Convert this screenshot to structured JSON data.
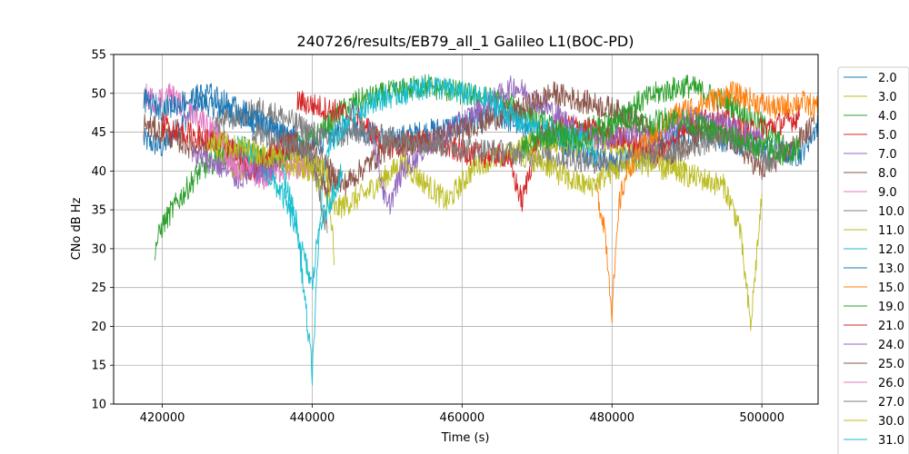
{
  "chart_data": {
    "type": "line",
    "title": "240726/results/EB79_all_1 Galileo L1(BOC-PD)",
    "xlabel": "Time (s)",
    "ylabel": "CNo dB Hz",
    "xlim": [
      413500,
      507500
    ],
    "ylim": [
      10,
      55
    ],
    "xticks": [
      "420000",
      "440000",
      "460000",
      "480000",
      "500000"
    ],
    "yticks": [
      "10",
      "15",
      "20",
      "25",
      "30",
      "35",
      "40",
      "45",
      "50",
      "55"
    ],
    "grid": true,
    "legend_position": "outside-right",
    "series": [
      {
        "name": "2.0",
        "color": "#1f77b4",
        "x": [
          417500,
          420000,
          425000,
          430000,
          435000,
          440000,
          445000,
          450000,
          455000,
          460000,
          465000,
          470000,
          475000,
          480000,
          485000,
          490000,
          495000,
          500000,
          505000,
          507500
        ],
        "y": [
          44,
          43,
          49,
          47,
          45,
          43,
          46,
          44,
          45,
          46,
          47,
          45,
          43,
          41,
          43,
          45,
          44,
          43,
          42,
          46
        ]
      },
      {
        "name": "3.0",
        "color": "#bcbd22",
        "x": [
          427000,
          430000,
          433000,
          436000,
          440000,
          443000,
          447000,
          452000,
          458000,
          462000,
          466000,
          470000,
          474000,
          478000,
          482000,
          486000,
          490000
        ],
        "y": [
          43,
          40,
          42,
          41,
          40,
          35,
          37,
          41,
          36,
          41,
          42,
          44,
          43,
          44,
          43,
          42,
          40
        ]
      },
      {
        "name": "4.0",
        "color": "#2ca02c",
        "x": [
          419000,
          420000,
          422000,
          425000,
          428000,
          431000,
          434000,
          437000,
          440000,
          443000,
          446000,
          450000,
          455000,
          460000,
          465000,
          470000,
          474000,
          478000,
          482000,
          486000,
          490000,
          495000,
          500000,
          503000
        ],
        "y": [
          30,
          33,
          36,
          40,
          42,
          43,
          41,
          43,
          44,
          47,
          49,
          50,
          51,
          50,
          49,
          47,
          44,
          46,
          48,
          50,
          51,
          49,
          46,
          43
        ]
      },
      {
        "name": "5.0",
        "color": "#d62728",
        "x": [
          438000,
          442000,
          446000,
          450000,
          454000,
          458000,
          462000,
          466000,
          468000,
          470000,
          474000,
          478000,
          482000,
          486000,
          490000,
          494000,
          498000,
          502000,
          505000
        ],
        "y": [
          49,
          48,
          47,
          43,
          44,
          43,
          42,
          42,
          36,
          44,
          46,
          45,
          44,
          42,
          46,
          47,
          45,
          46,
          47
        ]
      },
      {
        "name": "7.0",
        "color": "#9467bd",
        "x": [
          448000,
          450000,
          452000,
          455000,
          458000,
          461000,
          464000,
          467000,
          470000,
          473000,
          476000,
          479000,
          482000,
          486000,
          490000,
          495000,
          500000
        ],
        "y": [
          45,
          35,
          40,
          43,
          45,
          47,
          49,
          51,
          49,
          47,
          45,
          44,
          45,
          44,
          47,
          46,
          44
        ]
      },
      {
        "name": "8.0",
        "color": "#8c564b",
        "x": [
          417500,
          420000,
          424000,
          428000,
          432000,
          436000,
          440000,
          444000,
          450000,
          456000,
          462000,
          468000,
          472000,
          476000,
          480000,
          484000,
          488000,
          492000,
          496000,
          500000,
          504000,
          507000
        ],
        "y": [
          46,
          45,
          43,
          44,
          40,
          42,
          43,
          38,
          43,
          44,
          46,
          48,
          50,
          49,
          48,
          46,
          42,
          45,
          44,
          40,
          43,
          46
        ]
      },
      {
        "name": "9.0",
        "color": "#e377c2",
        "x": [
          417500,
          419000,
          421000,
          423000,
          425000,
          427000,
          429000,
          431000,
          433000,
          436000,
          440000
        ],
        "y": [
          50,
          49,
          50,
          48,
          47,
          45,
          43,
          41,
          39,
          40,
          41
        ]
      },
      {
        "name": "10.0",
        "color": "#7f7f7f",
        "x": [
          427000,
          430000,
          433000,
          436000,
          438000,
          440000,
          442000,
          446000,
          452000,
          460000,
          470000,
          480000,
          486000,
          490000,
          494000,
          498000,
          501000,
          503000
        ],
        "y": [
          46,
          47,
          48,
          47,
          46,
          45,
          44,
          45,
          44,
          43,
          42,
          41,
          42,
          43,
          44,
          44,
          41,
          43
        ]
      },
      {
        "name": "11.0",
        "color": "#bcbd22",
        "x": [
          468000,
          471000,
          474000,
          477000,
          480000,
          484000,
          488000,
          492000,
          495000,
          497000,
          498500,
          500000
        ],
        "y": [
          42,
          41,
          39,
          38,
          40,
          41,
          40,
          39,
          38,
          33,
          20,
          37
        ]
      },
      {
        "name": "12.0",
        "color": "#17becf",
        "x": [
          430000,
          433000,
          436000,
          438000,
          440000,
          442000,
          445000,
          448000,
          452000,
          456000,
          460000,
          464000,
          468000,
          472000,
          476000,
          478000
        ],
        "y": [
          43,
          41,
          37,
          32,
          25,
          43,
          47,
          49,
          50,
          51,
          50,
          49,
          46,
          45,
          44,
          42
        ]
      },
      {
        "name": "13.0",
        "color": "#1f77b4",
        "x": [
          417500,
          420000,
          423000,
          426000,
          428000,
          430000,
          432000,
          434000,
          436000,
          438000
        ],
        "y": [
          49,
          48,
          49,
          50,
          49,
          48,
          47,
          46,
          45,
          44
        ]
      },
      {
        "name": "15.0",
        "color": "#ff7f0e",
        "x": [
          478000,
          479000,
          480000,
          481000,
          482000,
          484000,
          486000,
          488000,
          490000,
          493000,
          496000,
          499000,
          502000,
          505000,
          507500
        ],
        "y": [
          37,
          33,
          22,
          36,
          40,
          43,
          45,
          47,
          48,
          49,
          50,
          49,
          48,
          49,
          48
        ]
      },
      {
        "name": "19.0",
        "color": "#2ca02c",
        "x": [
          468000,
          470000,
          473000,
          476000,
          479000,
          482000,
          485000,
          488000,
          491000,
          494000,
          497000,
          500000,
          503000,
          505000
        ],
        "y": [
          43,
          44,
          45,
          44,
          45,
          47,
          46,
          47,
          46,
          45,
          44,
          43,
          42,
          43
        ]
      },
      {
        "name": "21.0",
        "color": "#d62728",
        "x": [
          420000,
          423000,
          426000,
          429000,
          432000,
          435000,
          438000
        ],
        "y": [
          46,
          45,
          44,
          43,
          40,
          43,
          44
        ]
      },
      {
        "name": "24.0",
        "color": "#9467bd",
        "x": [
          424000,
          427000,
          430000,
          433000,
          436000
        ],
        "y": [
          42,
          41,
          39,
          40,
          41
        ]
      },
      {
        "name": "25.0",
        "color": "#8c564b",
        "x": [
          436000,
          438000,
          440000,
          442000,
          444000
        ],
        "y": [
          44,
          43,
          41,
          38,
          40
        ]
      },
      {
        "name": "26.0",
        "color": "#e377c2",
        "x": [
          428000,
          430000,
          432000
        ],
        "y": [
          42,
          40,
          41
        ]
      },
      {
        "name": "27.0",
        "color": "#7f7f7f",
        "x": [
          432000,
          436000,
          440000,
          442000
        ],
        "y": [
          45,
          44,
          42,
          32
        ]
      },
      {
        "name": "30.0",
        "color": "#bcbd22",
        "x": [
          426000,
          430000,
          434000,
          438000,
          442000,
          443000
        ],
        "y": [
          44,
          43,
          42,
          41,
          40,
          28
        ]
      },
      {
        "name": "31.0",
        "color": "#17becf",
        "x": [
          436000,
          438000,
          440000,
          441000,
          444000
        ],
        "y": [
          40,
          33,
          14,
          33,
          40
        ]
      }
    ]
  }
}
